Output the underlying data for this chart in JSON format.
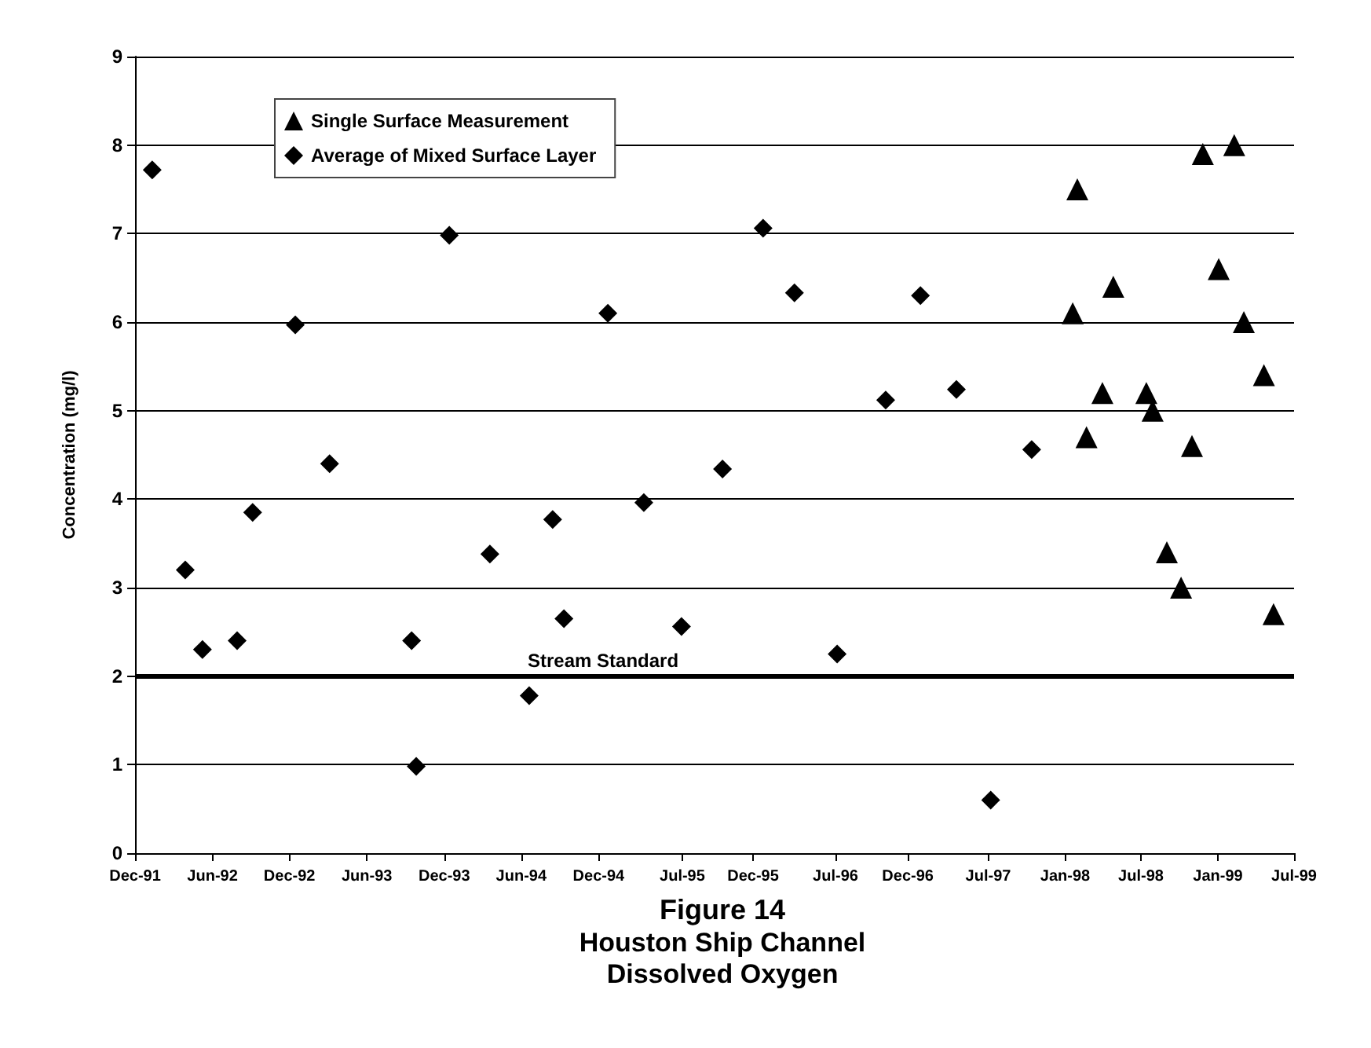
{
  "chart_data": {
    "type": "scatter",
    "title": "Figure 14",
    "subtitle": "Houston Ship Channel\nDissolved Oxygen",
    "ylabel": "Concentration (mg/l)",
    "xlim": [
      "1991-12-01",
      "1999-07-02"
    ],
    "xticks": [
      {
        "value": "1991-12-01",
        "label": "Dec-91"
      },
      {
        "value": "1992-06-03",
        "label": "Jun-92"
      },
      {
        "value": "1992-12-04",
        "label": "Dec-92"
      },
      {
        "value": "1993-06-07",
        "label": "Jun-93"
      },
      {
        "value": "1993-12-09",
        "label": "Dec-93"
      },
      {
        "value": "1994-06-11",
        "label": "Jun-94"
      },
      {
        "value": "1994-12-13",
        "label": "Dec-94"
      },
      {
        "value": "1995-07-01",
        "label": "Jul-95"
      },
      {
        "value": "1995-12-17",
        "label": "Dec-95"
      },
      {
        "value": "1996-07-01",
        "label": "Jul-96"
      },
      {
        "value": "1996-12-21",
        "label": "Dec-96"
      },
      {
        "value": "1997-07-01",
        "label": "Jul-97"
      },
      {
        "value": "1998-01-01",
        "label": "Jan-98"
      },
      {
        "value": "1998-07-01",
        "label": "Jul-98"
      },
      {
        "value": "1999-01-01",
        "label": "Jan-99"
      },
      {
        "value": "1999-07-02",
        "label": "Jul-99"
      }
    ],
    "ylim": [
      0,
      9
    ],
    "yticks": [
      0,
      1,
      2,
      3,
      4,
      5,
      6,
      7,
      8,
      9
    ],
    "grid": "y",
    "legend": "top left",
    "ref_lines": [
      {
        "axis": "y",
        "value": 2,
        "label": "Stream Standard",
        "color": "#000000",
        "line_style": "solid"
      }
    ],
    "series": [
      {
        "name": "Single Surface Measurement",
        "color": "#000000",
        "marker": "triangle",
        "x": [
          "1998-01-19",
          "1998-01-30",
          "1998-02-21",
          "1998-03-31",
          "1998-04-26",
          "1998-07-14",
          "1998-07-29",
          "1998-09-01",
          "1998-10-05",
          "1998-10-31",
          "1998-11-26",
          "1999-01-03",
          "1999-02-09",
          "1999-03-04",
          "1999-04-21",
          "1999-05-14"
        ],
        "values": [
          6.1,
          7.5,
          4.7,
          5.2,
          6.4,
          5.2,
          5.0,
          3.4,
          3.0,
          4.6,
          7.9,
          6.6,
          8.0,
          6.0,
          5.4,
          2.7
        ]
      },
      {
        "name": "Average of Mixed Surface Layer",
        "color": "#000000",
        "marker": "diamond",
        "x": [
          "1992-01-11",
          "1992-03-30",
          "1992-05-10",
          "1992-08-01",
          "1992-09-07",
          "1992-12-18",
          "1993-03-10",
          "1993-09-22",
          "1993-10-03",
          "1993-12-21",
          "1994-03-28",
          "1994-06-30",
          "1994-08-25",
          "1994-09-21",
          "1995-01-04",
          "1995-03-31",
          "1995-06-29",
          "1995-10-05",
          "1996-01-10",
          "1996-03-25",
          "1996-07-05",
          "1996-10-29",
          "1997-01-20",
          "1997-04-16",
          "1997-07-07",
          "1997-10-13"
        ],
        "values": [
          7.72,
          3.2,
          2.3,
          2.4,
          3.85,
          5.97,
          4.4,
          2.4,
          0.98,
          6.98,
          3.38,
          1.78,
          3.77,
          2.65,
          6.1,
          3.96,
          2.56,
          4.34,
          7.06,
          6.33,
          2.25,
          5.12,
          6.3,
          5.24,
          0.6,
          4.56
        ]
      }
    ]
  }
}
